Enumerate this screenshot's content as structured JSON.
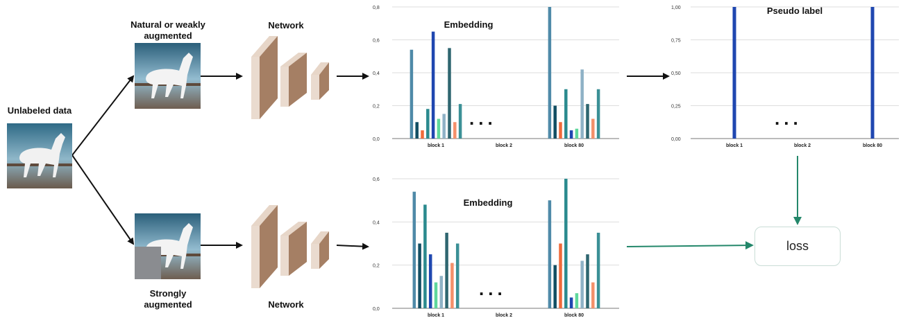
{
  "labels": {
    "unlabeled": "Unlabeled data",
    "weak_line1": "Natural or weakly",
    "weak_line2": "augmented",
    "network_top": "Network",
    "strong_line1": "Strongly",
    "strong_line2": "augmented",
    "network_bottom": "Network",
    "loss": "loss",
    "ellipsis": "..."
  },
  "colors": {
    "arrow": "#111111",
    "loss_arrow": "#23876a",
    "network_front": "#a57f64",
    "network_side": "#e7d6c8",
    "grid": "#dddddd"
  },
  "chart_data": [
    {
      "type": "bar",
      "title": "Embedding",
      "categories": [
        "block 1",
        "block 2",
        "block 80"
      ],
      "ylim": [
        0,
        0.8
      ],
      "yticks": [
        "0,0",
        "0,2",
        "0,4",
        "0,6",
        "0,8"
      ],
      "grid": true,
      "bar_colors": [
        "#4f8aa8",
        "#124e63",
        "#f06a3a",
        "#2b8a8e",
        "#1f47b0",
        "#5fd79c",
        "#8fb2c6",
        "#2f6670",
        "#f4906a",
        "#3b9096"
      ],
      "groups": [
        {
          "category": "block 1",
          "values": [
            0.54,
            0.1,
            0.05,
            0.18,
            0.65,
            0.12,
            0.15,
            0.55,
            0.1,
            0.21
          ]
        },
        {
          "category": "block 2",
          "values": []
        },
        {
          "category": "block 80",
          "values": [
            0.8,
            0.2,
            0.1,
            0.3,
            0.05,
            0.06,
            0.42,
            0.21,
            0.12,
            0.3
          ]
        }
      ]
    },
    {
      "type": "bar",
      "title": "Pseudo label",
      "categories": [
        "block 1",
        "block 2",
        "block 80"
      ],
      "ylim": [
        0,
        1.0
      ],
      "yticks": [
        "0,00",
        "0,25",
        "0,50",
        "0,75",
        "1,00"
      ],
      "grid": true,
      "bar_colors": [
        "#1f47b0",
        "#4f8aa8"
      ],
      "groups": [
        {
          "category": "block 1",
          "values": [
            1.0
          ]
        },
        {
          "category": "block 2",
          "values": []
        },
        {
          "category": "block 80",
          "values": [
            1.0
          ]
        }
      ]
    },
    {
      "type": "bar",
      "title": "Embedding",
      "categories": [
        "block 1",
        "block 2",
        "block 80"
      ],
      "ylim": [
        0,
        0.6
      ],
      "yticks": [
        "0,0",
        "0,2",
        "0,4",
        "0,6"
      ],
      "grid": true,
      "bar_colors": [
        "#4f8aa8",
        "#124e63",
        "#2b8a8e",
        "#1f47b0",
        "#5fd79c",
        "#8fb2c6",
        "#2f6670",
        "#f4906a",
        "#3b9096"
      ],
      "groups": [
        {
          "category": "block 1",
          "values": [
            0.54,
            0.3,
            0.48,
            0.25,
            0.12,
            0.15,
            0.35,
            0.21,
            0.3
          ]
        },
        {
          "category": "block 2",
          "values": []
        },
        {
          "category": "block 80",
          "values": [
            0.5,
            0.2,
            0.3,
            0.6,
            0.05,
            0.07,
            0.22,
            0.25,
            0.12,
            0.35
          ]
        }
      ],
      "group_colors_block80": [
        "#4f8aa8",
        "#124e63",
        "#f06a3a",
        "#2b8a8e",
        "#1f47b0",
        "#5fd79c",
        "#8fb2c6",
        "#2f6670",
        "#f4906a",
        "#3b9096"
      ]
    }
  ]
}
